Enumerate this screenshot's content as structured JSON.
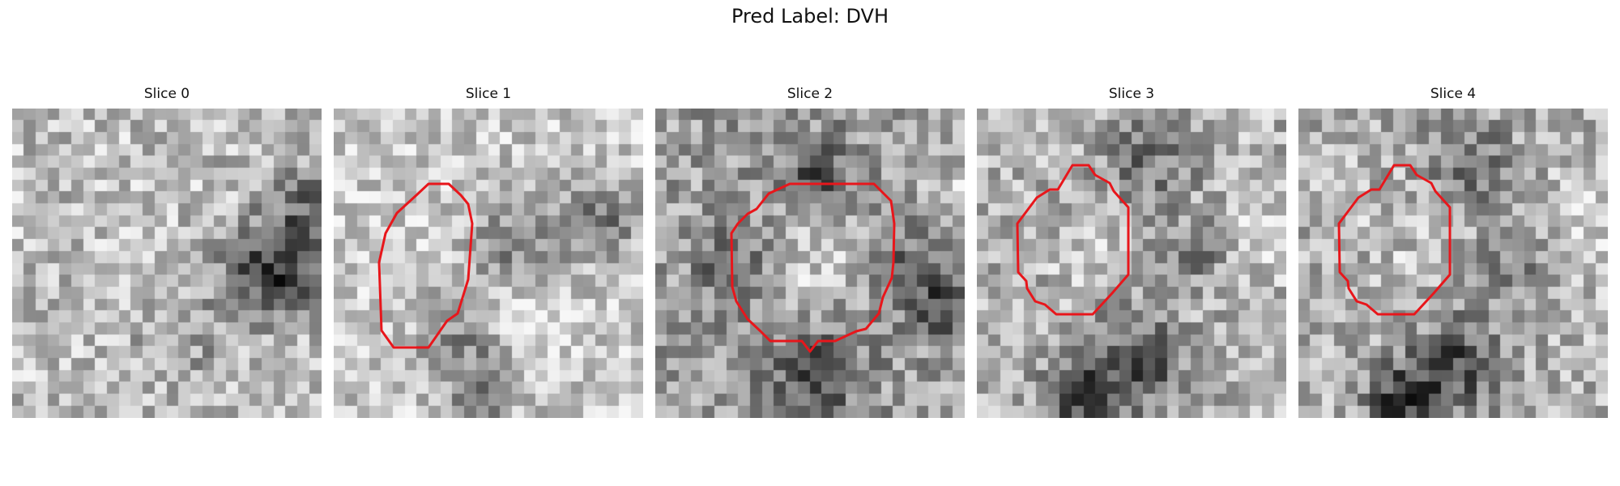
{
  "figure": {
    "title": "Pred Label: DVH"
  },
  "panels": [
    {
      "title": "Slice 0",
      "has_contour": false
    },
    {
      "title": "Slice 1",
      "has_contour": true
    },
    {
      "title": "Slice 2",
      "has_contour": true
    },
    {
      "title": "Slice 3",
      "has_contour": true
    },
    {
      "title": "Slice 4",
      "has_contour": true
    }
  ],
  "colors": {
    "contour": "#e8161b",
    "colormap": "gray"
  }
}
